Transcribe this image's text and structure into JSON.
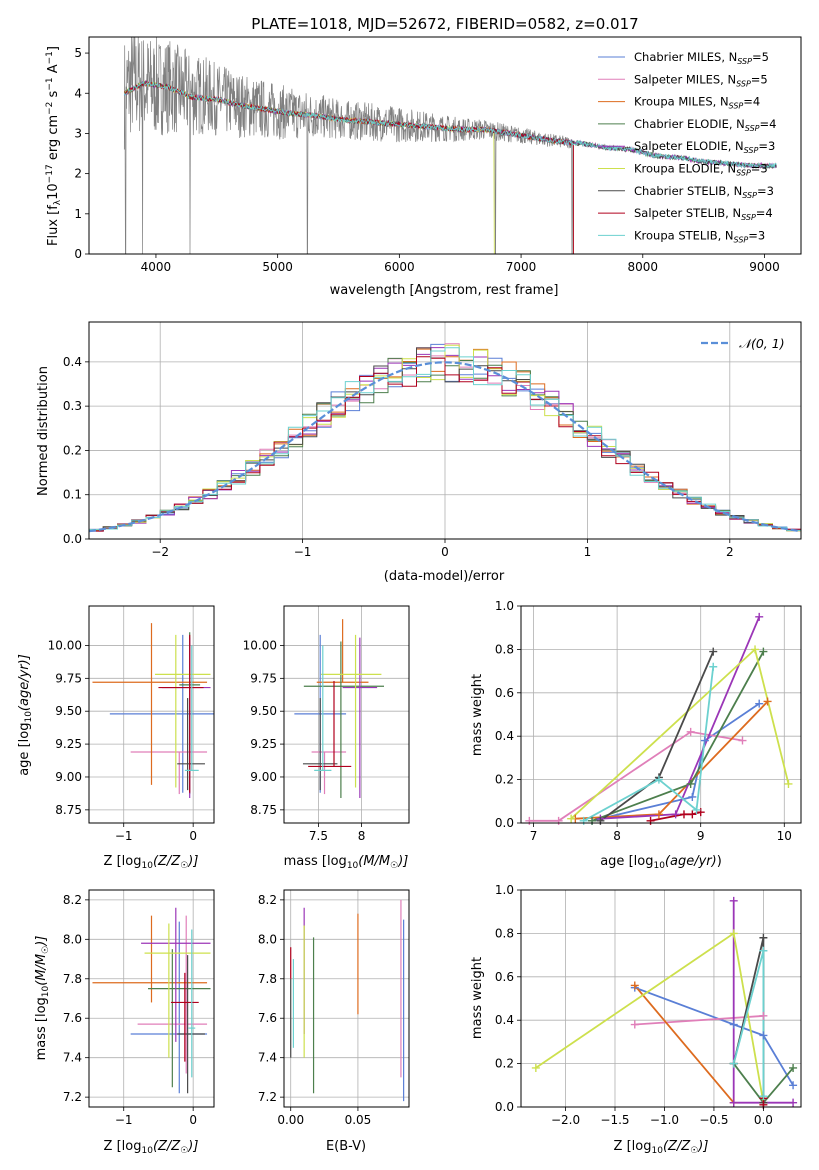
{
  "figure": {
    "title": "PLATE=1018, MJD=52672, FIBERID=0582, z=0.017"
  },
  "model_colors": [
    "#5a7fd6",
    "#e07fb9",
    "#dd6b1f",
    "#4d7f4d",
    "#9b36b7",
    "#cde04d",
    "#4a4a4a",
    "#b0001d",
    "#6cd1cf"
  ],
  "legend": [
    {
      "label": "Chabrier MILES, N",
      "nssp": "=5"
    },
    {
      "label": "Salpeter MILES, N",
      "nssp": "=5"
    },
    {
      "label": "Kroupa MILES, N",
      "nssp": "=4"
    },
    {
      "label": "Chabrier ELODIE, N",
      "nssp": "=4"
    },
    {
      "label": "Salpeter ELODIE, N",
      "nssp": "=3"
    },
    {
      "label": "Kroupa ELODIE, N",
      "nssp": "=3"
    },
    {
      "label": "Chabrier STELIB, N",
      "nssp": "=3"
    },
    {
      "label": "Salpeter STELIB, N",
      "nssp": "=4"
    },
    {
      "label": "Kroupa STELIB, N",
      "nssp": "=3"
    }
  ],
  "chart_data": [
    {
      "id": "spectrum",
      "type": "line",
      "title": "PLATE=1018, MJD=52672, FIBERID=0582, z=0.017",
      "xlabel": "wavelength [Angstrom, rest frame]",
      "ylabel": "Flux [f",
      "xlim": [
        3450,
        9300
      ],
      "ylim": [
        0,
        5.4
      ],
      "xticks": [
        4000,
        5000,
        6000,
        7000,
        8000,
        9000
      ],
      "yticks": [
        0,
        1,
        2,
        3,
        4,
        5
      ],
      "grid": false,
      "legend_position": "top-right",
      "data_color": "#808080",
      "data_continuum": {
        "x": [
          3740,
          3800,
          3900,
          4000,
          4100,
          4200,
          4300,
          4400,
          4500,
          4700,
          4900,
          5100,
          5300,
          5500,
          5700,
          5900,
          6100,
          6300,
          6500,
          6700,
          6900,
          7100,
          7300,
          7500,
          7700,
          7900,
          8100,
          8300,
          8500,
          8700,
          8900,
          9000,
          9100
        ],
        "y": [
          4.0,
          4.3,
          4.2,
          4.15,
          4.2,
          4.05,
          3.95,
          3.95,
          3.85,
          3.7,
          3.6,
          3.5,
          3.45,
          3.35,
          3.3,
          3.25,
          3.2,
          3.15,
          3.1,
          3.1,
          3.0,
          2.9,
          2.8,
          2.75,
          2.65,
          2.6,
          2.45,
          2.4,
          2.3,
          2.25,
          2.2,
          2.15,
          2.2
        ]
      },
      "data_noise_scale": {
        "x": [
          3740,
          4100,
          4500,
          5000,
          5500,
          6000,
          6500,
          7000,
          7400,
          7450,
          9100
        ],
        "y": [
          1.4,
          1.2,
          0.9,
          0.7,
          0.5,
          0.45,
          0.3,
          0.2,
          0.15,
          0.03,
          0.03
        ]
      },
      "data_dropouts": [
        {
          "x": 3750,
          "y": 0.0
        },
        {
          "x": 3890,
          "y": 0.0
        },
        {
          "x": 4280,
          "y": 0.0
        },
        {
          "x": 5245,
          "y": 0.0
        },
        {
          "x": 6790,
          "y": 0.0
        },
        {
          "x": 7420,
          "y": 0.0
        }
      ],
      "model_continuum": {
        "x": [
          3740,
          3900,
          4100,
          4300,
          4500,
          4700,
          4900,
          5100,
          5300,
          5500,
          5700,
          5900,
          6100,
          6300,
          6500,
          6700,
          6900,
          7100,
          7300,
          7500,
          7700,
          7900,
          8100,
          8300,
          8500,
          8700,
          8900,
          9100
        ],
        "y": [
          4.0,
          4.25,
          4.15,
          3.9,
          3.85,
          3.7,
          3.6,
          3.5,
          3.45,
          3.35,
          3.3,
          3.25,
          3.2,
          3.15,
          3.1,
          3.1,
          3.0,
          2.9,
          2.8,
          2.75,
          2.65,
          2.6,
          2.45,
          2.4,
          2.3,
          2.25,
          2.2,
          2.2
        ]
      },
      "model_ranges": [
        [
          3740,
          7430
        ],
        [
          3740,
          9100
        ],
        [
          3740,
          7430
        ],
        [
          3740,
          9100
        ],
        [
          3740,
          9100
        ],
        [
          3740,
          6780
        ],
        [
          3740,
          9100
        ],
        [
          3740,
          7430
        ],
        [
          3740,
          9100
        ]
      ]
    },
    {
      "id": "residuals",
      "type": "area",
      "xlabel": "(data-model)/error",
      "ylabel": "Normed distribution",
      "xlim": [
        -2.5,
        2.5
      ],
      "ylim": [
        0,
        0.49
      ],
      "xticks": [
        -2,
        -1,
        0,
        1,
        2
      ],
      "yticks": [
        0.0,
        0.1,
        0.2,
        0.3,
        0.4
      ],
      "grid": true,
      "legend_position": "top-right",
      "legend": [
        {
          "label": "𝒩(0, 1)",
          "color": "#5a8fd8"
        }
      ],
      "bin_width": 0.1,
      "bin_start": -2.5,
      "gaussian": {
        "mean": 0,
        "sigma": 1
      }
    },
    {
      "id": "age_vs_Z",
      "type": "scatter",
      "xlabel": "Z [log",
      "ylabel": "age  [log",
      "xlim": [
        -1.5,
        0.3
      ],
      "ylim": [
        8.65,
        10.3
      ],
      "xticks": [
        -1,
        0
      ],
      "yticks": [
        8.75,
        9.0,
        9.25,
        9.5,
        9.75,
        10.0
      ],
      "grid": true,
      "errorbars": [
        {
          "x": -0.15,
          "xerr": [
            1.05,
            1.05
          ],
          "y": 9.48,
          "yerr": [
            0.6,
            0.6
          ]
        },
        {
          "x": -0.2,
          "xerr": [
            0.7,
            0.4
          ],
          "y": 9.19,
          "yerr": [
            0.32,
            0.0
          ]
        },
        {
          "x": -0.6,
          "xerr": [
            0.85,
            0.8
          ],
          "y": 9.72,
          "yerr": [
            0.78,
            0.45
          ]
        },
        {
          "x": -0.05,
          "xerr": [
            0.15,
            0.15
          ],
          "y": 9.7,
          "yerr": [
            0.83,
            0.4
          ]
        },
        {
          "x": -0.05,
          "xerr": [
            0.4,
            0.3
          ],
          "y": 9.68,
          "yerr": [
            0.84,
            0.38
          ]
        },
        {
          "x": -0.25,
          "xerr": [
            0.3,
            0.5
          ],
          "y": 9.78,
          "yerr": [
            0.86,
            0.3
          ]
        },
        {
          "x": -0.08,
          "xerr": [
            0.15,
            0.25
          ],
          "y": 9.1,
          "yerr": [
            0.2,
            0.5
          ]
        },
        {
          "x": -0.05,
          "xerr": [
            0.45,
            0.2
          ],
          "y": 9.68,
          "yerr": [
            0.8,
            0.4
          ]
        },
        {
          "x": -0.02,
          "xerr": [
            0.1,
            0.1
          ],
          "y": 9.05,
          "yerr": [
            0.0,
            0.95
          ]
        }
      ]
    },
    {
      "id": "age_vs_mass",
      "type": "scatter",
      "xlabel": "mass [log",
      "ylabel": "",
      "xlim": [
        7.1,
        8.55
      ],
      "ylim": [
        8.65,
        10.3
      ],
      "xticks": [
        7.5,
        8.0
      ],
      "yticks": [
        8.75,
        9.0,
        9.25,
        9.5,
        9.75,
        10.0
      ],
      "grid": true,
      "errorbars": [
        {
          "x": 7.52,
          "xerr": [
            0.3,
            0.3
          ],
          "y": 9.48,
          "yerr": [
            0.6,
            0.6
          ]
        },
        {
          "x": 7.57,
          "xerr": [
            0.15,
            0.25
          ],
          "y": 9.19,
          "yerr": [
            0.32,
            0.0
          ]
        },
        {
          "x": 7.78,
          "xerr": [
            0.3,
            0.3
          ],
          "y": 9.72,
          "yerr": [
            0.0,
            0.48
          ]
        },
        {
          "x": 7.76,
          "xerr": [
            0.43,
            0.5
          ],
          "y": 9.69,
          "yerr": [
            0.85,
            0.34
          ]
        },
        {
          "x": 7.98,
          "xerr": [
            0.2,
            0.2
          ],
          "y": 9.68,
          "yerr": [
            0.84,
            0.38
          ]
        },
        {
          "x": 7.93,
          "xerr": [
            0.4,
            0.3
          ],
          "y": 9.78,
          "yerr": [
            0.86,
            0.3
          ]
        },
        {
          "x": 7.52,
          "xerr": [
            0.2,
            0.2
          ],
          "y": 9.1,
          "yerr": [
            0.2,
            0.5
          ]
        },
        {
          "x": 7.68,
          "xerr": [
            0.3,
            0.2
          ],
          "y": 9.08,
          "yerr": [
            0.0,
            0.65
          ]
        },
        {
          "x": 7.55,
          "xerr": [
            0.1,
            0.1
          ],
          "y": 9.05,
          "yerr": [
            0.0,
            0.95
          ]
        }
      ]
    },
    {
      "id": "weight_vs_age",
      "type": "line",
      "xlabel": "age  [log",
      "ylabel": "mass weight",
      "xlim": [
        6.85,
        10.2
      ],
      "ylim": [
        0,
        1
      ],
      "xticks": [
        7,
        8,
        9,
        10
      ],
      "yticks": [
        0.0,
        0.2,
        0.4,
        0.6,
        0.8,
        1.0
      ],
      "grid": true,
      "series": [
        {
          "x": [
            7.7,
            8.9,
            9.05,
            9.7
          ],
          "y": [
            0.01,
            0.12,
            0.38,
            0.55
          ]
        },
        {
          "x": [
            6.95,
            7.3,
            8.88,
            9.5
          ],
          "y": [
            0.01,
            0.01,
            0.42,
            0.38
          ]
        },
        {
          "x": [
            7.5,
            8.5,
            9.8
          ],
          "y": [
            0.02,
            0.04,
            0.56
          ]
        },
        {
          "x": [
            7.7,
            8.88,
            9.75
          ],
          "y": [
            0.01,
            0.18,
            0.79
          ]
        },
        {
          "x": [
            7.8,
            8.7,
            9.7
          ],
          "y": [
            0.02,
            0.04,
            0.95
          ]
        },
        {
          "x": [
            7.45,
            9.65,
            10.05
          ],
          "y": [
            0.02,
            0.8,
            0.18
          ]
        },
        {
          "x": [
            7.8,
            8.5,
            9.15
          ],
          "y": [
            0.01,
            0.21,
            0.79
          ]
        },
        {
          "x": [
            8.4,
            8.8,
            8.9,
            9.0
          ],
          "y": [
            0.01,
            0.04,
            0.04,
            0.05
          ]
        },
        {
          "x": [
            7.6,
            8.5,
            8.95,
            9.15
          ],
          "y": [
            0.01,
            0.2,
            0.06,
            0.72
          ]
        }
      ]
    },
    {
      "id": "mass_vs_Z",
      "type": "scatter",
      "xlabel": "Z [log",
      "ylabel": "mass [log",
      "xlim": [
        -1.5,
        0.3
      ],
      "ylim": [
        7.15,
        8.25
      ],
      "xticks": [
        -1,
        0
      ],
      "yticks": [
        7.2,
        7.4,
        7.6,
        7.8,
        8.0,
        8.2
      ],
      "grid": true,
      "errorbars": [
        {
          "x": -0.2,
          "xerr": [
            0.7,
            0.4
          ],
          "y": 7.52,
          "yerr": [
            0.3,
            0.57
          ]
        },
        {
          "x": -0.1,
          "xerr": [
            0.7,
            0.3
          ],
          "y": 7.57,
          "yerr": [
            0.25,
            0.55
          ]
        },
        {
          "x": -0.6,
          "xerr": [
            0.85,
            0.8
          ],
          "y": 7.78,
          "yerr": [
            0.1,
            0.34
          ]
        },
        {
          "x": -0.3,
          "xerr": [
            0.35,
            0.55
          ],
          "y": 7.75,
          "yerr": [
            0.5,
            0.2
          ]
        },
        {
          "x": -0.25,
          "xerr": [
            0.5,
            0.5
          ],
          "y": 7.98,
          "yerr": [
            0.5,
            0.18
          ]
        },
        {
          "x": -0.35,
          "xerr": [
            0.35,
            0.6
          ],
          "y": 7.93,
          "yerr": [
            0.53,
            0.15
          ]
        },
        {
          "x": -0.08,
          "xerr": [
            0.15,
            0.25
          ],
          "y": 7.52,
          "yerr": [
            0.3,
            0.4
          ]
        },
        {
          "x": -0.12,
          "xerr": [
            0.2,
            0.2
          ],
          "y": 7.68,
          "yerr": [
            0.3,
            0.15
          ]
        },
        {
          "x": -0.02,
          "xerr": [
            0.05,
            0.05
          ],
          "y": 7.55,
          "yerr": [
            0.25,
            0.5
          ]
        }
      ]
    },
    {
      "id": "mass_vs_ebv",
      "type": "scatter",
      "xlabel": "E(B-V)",
      "ylabel": "",
      "xlim": [
        -0.005,
        0.088
      ],
      "ylim": [
        7.15,
        8.25
      ],
      "xticks": [
        0.0,
        0.05
      ],
      "yticks": [
        7.2,
        7.4,
        7.6,
        7.8,
        8.0,
        8.2
      ],
      "grid": true,
      "errorbars": [
        {
          "x": 0.084,
          "xerr": [
            0,
            0
          ],
          "y": 7.6,
          "yerr": [
            0.42,
            0.5
          ]
        },
        {
          "x": 0.082,
          "xerr": [
            0,
            0
          ],
          "y": 7.75,
          "yerr": [
            0.45,
            0.45
          ]
        },
        {
          "x": 0.05,
          "xerr": [
            0,
            0
          ],
          "y": 7.85,
          "yerr": [
            0.23,
            0.28
          ]
        },
        {
          "x": 0.017,
          "xerr": [
            0,
            0
          ],
          "y": 7.6,
          "yerr": [
            0.38,
            0.41
          ]
        },
        {
          "x": 0.01,
          "xerr": [
            0,
            0
          ],
          "y": 7.9,
          "yerr": [
            0.38,
            0.26
          ]
        },
        {
          "x": 0.01,
          "xerr": [
            0,
            0
          ],
          "y": 7.7,
          "yerr": [
            0.3,
            0.37
          ]
        },
        {
          "x": 0.0,
          "xerr": [
            0,
            0
          ],
          "y": 7.6,
          "yerr": [
            0.2,
            0.2
          ]
        },
        {
          "x": 0.0,
          "xerr": [
            0,
            0
          ],
          "y": 7.9,
          "yerr": [
            0.1,
            0.06
          ]
        },
        {
          "x": 0.002,
          "xerr": [
            0,
            0
          ],
          "y": 7.65,
          "yerr": [
            0.2,
            0.25
          ]
        }
      ]
    },
    {
      "id": "weight_vs_Z",
      "type": "line",
      "xlabel": "Z [log",
      "ylabel": "mass weight",
      "xlim": [
        -2.45,
        0.38
      ],
      "ylim": [
        0,
        1
      ],
      "xticks": [
        -2.0,
        -1.5,
        -1.0,
        -0.5,
        0.0
      ],
      "yticks": [
        0.0,
        0.2,
        0.4,
        0.6,
        0.8,
        1.0
      ],
      "grid": true,
      "series": [
        {
          "x": [
            -1.3,
            -0.3,
            0.0,
            0.3
          ],
          "y": [
            0.55,
            0.38,
            0.33,
            0.1
          ]
        },
        {
          "x": [
            -1.3,
            0.0
          ],
          "y": [
            0.38,
            0.42
          ]
        },
        {
          "x": [
            -1.3,
            -0.3
          ],
          "y": [
            0.56,
            0.02
          ]
        },
        {
          "x": [
            -0.3,
            0.0,
            0.3
          ],
          "y": [
            0.2,
            0.02,
            0.18
          ]
        },
        {
          "x": [
            -0.3,
            -0.3,
            0.0,
            0.3
          ],
          "y": [
            0.95,
            0.02,
            0.02,
            0.02
          ]
        },
        {
          "x": [
            -2.3,
            -0.3,
            0.0
          ],
          "y": [
            0.18,
            0.8,
            0.02
          ]
        },
        {
          "x": [
            -0.3,
            0.0,
            0.0
          ],
          "y": [
            0.2,
            0.78,
            0.02
          ]
        },
        {
          "x": [
            0.0,
            0.0
          ],
          "y": [
            0.01,
            0.04
          ]
        },
        {
          "x": [
            -0.3,
            0.0,
            0.0
          ],
          "y": [
            0.2,
            0.72,
            0.05
          ]
        }
      ]
    }
  ]
}
